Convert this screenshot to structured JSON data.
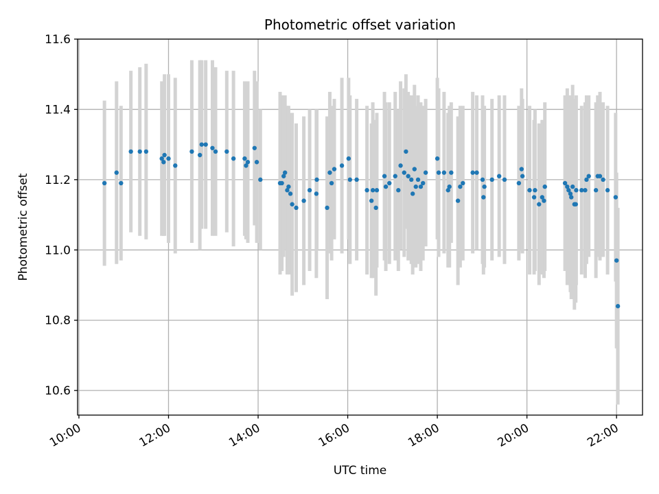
{
  "chart_data": {
    "type": "scatter",
    "title": "Photometric offset variation",
    "xlabel": "UTC time",
    "ylabel": "Photometric offset",
    "x_unit": "hours UTC",
    "xlim": [
      9.97,
      22.58
    ],
    "ylim": [
      10.53,
      11.6
    ],
    "x_ticks": [
      {
        "value": 10,
        "label": "10:00"
      },
      {
        "value": 12,
        "label": "12:00"
      },
      {
        "value": 14,
        "label": "14:00"
      },
      {
        "value": 16,
        "label": "16:00"
      },
      {
        "value": 18,
        "label": "18:00"
      },
      {
        "value": 20,
        "label": "20:00"
      },
      {
        "value": 22,
        "label": "22:00"
      }
    ],
    "y_ticks": [
      {
        "value": 10.6,
        "label": "10.6"
      },
      {
        "value": 10.8,
        "label": "10.8"
      },
      {
        "value": 11.0,
        "label": "11.0"
      },
      {
        "value": 11.2,
        "label": "11.2"
      },
      {
        "value": 11.4,
        "label": "11.4"
      },
      {
        "value": 11.6,
        "label": "11.6"
      }
    ],
    "grid": true,
    "marker_color": "#1f77b4",
    "errorbar_color": "#d3d3d3",
    "points": [
      [
        10.57,
        11.19,
        0.235
      ],
      [
        10.84,
        11.22,
        0.26
      ],
      [
        10.94,
        11.19,
        0.22
      ],
      [
        11.16,
        11.28,
        0.23
      ],
      [
        11.36,
        11.28,
        0.24
      ],
      [
        11.5,
        11.28,
        0.25
      ],
      [
        11.85,
        11.26,
        0.22
      ],
      [
        11.89,
        11.25,
        0.21
      ],
      [
        11.91,
        11.27,
        0.23
      ],
      [
        12.0,
        11.26,
        0.24
      ],
      [
        12.15,
        11.24,
        0.25
      ],
      [
        12.52,
        11.28,
        0.26
      ],
      [
        12.7,
        11.27,
        0.27
      ],
      [
        12.74,
        11.3,
        0.24
      ],
      [
        12.83,
        11.3,
        0.24
      ],
      [
        12.98,
        11.29,
        0.25
      ],
      [
        13.05,
        11.28,
        0.24
      ],
      [
        13.3,
        11.28,
        0.23
      ],
      [
        13.45,
        11.26,
        0.25
      ],
      [
        13.7,
        11.26,
        0.22
      ],
      [
        13.73,
        11.24,
        0.21
      ],
      [
        13.77,
        11.25,
        0.23
      ],
      [
        13.92,
        11.29,
        0.22
      ],
      [
        13.97,
        11.25,
        0.23
      ],
      [
        14.05,
        11.2,
        0.2
      ],
      [
        14.49,
        11.19,
        0.26
      ],
      [
        14.53,
        11.19,
        0.25
      ],
      [
        14.57,
        11.21,
        0.23
      ],
      [
        14.6,
        11.22,
        0.22
      ],
      [
        14.65,
        11.17,
        0.24
      ],
      [
        14.68,
        11.18,
        0.23
      ],
      [
        14.72,
        11.16,
        0.23
      ],
      [
        14.76,
        11.13,
        0.26
      ],
      [
        14.85,
        11.12,
        0.24
      ],
      [
        15.02,
        11.14,
        0.24
      ],
      [
        15.15,
        11.17,
        0.23
      ],
      [
        15.3,
        11.16,
        0.24
      ],
      [
        15.31,
        11.2,
        0.2
      ],
      [
        15.54,
        11.12,
        0.26
      ],
      [
        15.6,
        11.22,
        0.23
      ],
      [
        15.64,
        11.19,
        0.22
      ],
      [
        15.7,
        11.23,
        0.2
      ],
      [
        15.87,
        11.24,
        0.25
      ],
      [
        16.02,
        11.26,
        0.23
      ],
      [
        16.05,
        11.2,
        0.24
      ],
      [
        16.2,
        11.2,
        0.23
      ],
      [
        16.43,
        11.17,
        0.24
      ],
      [
        16.53,
        11.14,
        0.22
      ],
      [
        16.56,
        11.17,
        0.25
      ],
      [
        16.63,
        11.12,
        0.25
      ],
      [
        16.65,
        11.17,
        0.22
      ],
      [
        16.82,
        11.21,
        0.24
      ],
      [
        16.85,
        11.18,
        0.24
      ],
      [
        16.93,
        11.19,
        0.23
      ],
      [
        17.06,
        11.21,
        0.24
      ],
      [
        17.13,
        11.17,
        0.23
      ],
      [
        17.18,
        11.24,
        0.24
      ],
      [
        17.26,
        11.22,
        0.24
      ],
      [
        17.3,
        11.28,
        0.22
      ],
      [
        17.35,
        11.21,
        0.24
      ],
      [
        17.42,
        11.2,
        0.24
      ],
      [
        17.45,
        11.16,
        0.23
      ],
      [
        17.49,
        11.23,
        0.24
      ],
      [
        17.52,
        11.18,
        0.23
      ],
      [
        17.57,
        11.2,
        0.24
      ],
      [
        17.63,
        11.18,
        0.24
      ],
      [
        17.68,
        11.19,
        0.22
      ],
      [
        17.74,
        11.22,
        0.21
      ],
      [
        18.0,
        11.26,
        0.23
      ],
      [
        18.03,
        11.22,
        0.24
      ],
      [
        18.15,
        11.22,
        0.23
      ],
      [
        18.24,
        11.17,
        0.22
      ],
      [
        18.27,
        11.18,
        0.23
      ],
      [
        18.31,
        11.22,
        0.2
      ],
      [
        18.46,
        11.14,
        0.24
      ],
      [
        18.51,
        11.18,
        0.23
      ],
      [
        18.57,
        11.19,
        0.22
      ],
      [
        18.79,
        11.22,
        0.23
      ],
      [
        18.88,
        11.22,
        0.22
      ],
      [
        19.01,
        11.2,
        0.24
      ],
      [
        19.03,
        11.15,
        0.22
      ],
      [
        19.05,
        11.18,
        0.23
      ],
      [
        19.22,
        11.2,
        0.23
      ],
      [
        19.38,
        11.21,
        0.23
      ],
      [
        19.5,
        11.2,
        0.24
      ],
      [
        19.82,
        11.19,
        0.22
      ],
      [
        19.88,
        11.23,
        0.23
      ],
      [
        19.9,
        11.21,
        0.22
      ],
      [
        20.06,
        11.17,
        0.24
      ],
      [
        20.16,
        11.15,
        0.22
      ],
      [
        20.18,
        11.17,
        0.23
      ],
      [
        20.27,
        11.13,
        0.23
      ],
      [
        20.34,
        11.15,
        0.22
      ],
      [
        20.38,
        11.14,
        0.22
      ],
      [
        20.4,
        11.18,
        0.24
      ],
      [
        20.85,
        11.19,
        0.25
      ],
      [
        20.9,
        11.18,
        0.28
      ],
      [
        20.93,
        11.17,
        0.27
      ],
      [
        20.97,
        11.16,
        0.28
      ],
      [
        20.99,
        11.15,
        0.29
      ],
      [
        21.02,
        11.18,
        0.29
      ],
      [
        21.06,
        11.13,
        0.3
      ],
      [
        21.09,
        11.13,
        0.28
      ],
      [
        21.1,
        11.17,
        0.27
      ],
      [
        21.22,
        11.17,
        0.24
      ],
      [
        21.3,
        11.17,
        0.25
      ],
      [
        21.33,
        11.2,
        0.24
      ],
      [
        21.38,
        11.21,
        0.23
      ],
      [
        21.54,
        11.17,
        0.25
      ],
      [
        21.58,
        11.21,
        0.23
      ],
      [
        21.63,
        11.21,
        0.24
      ],
      [
        21.7,
        11.2,
        0.22
      ],
      [
        21.8,
        11.17,
        0.24
      ],
      [
        21.98,
        11.15,
        0.24
      ],
      [
        22.0,
        10.97,
        0.25
      ],
      [
        22.03,
        10.84,
        0.28
      ]
    ]
  }
}
